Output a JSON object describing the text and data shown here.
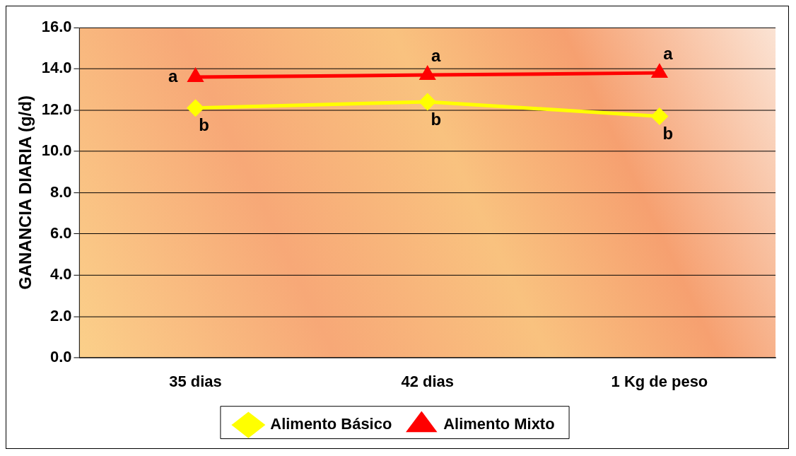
{
  "chart_data": {
    "type": "line",
    "ylabel": "GANANCIA DIARIA (g/d)",
    "categories": [
      "35 dias",
      "42 dias",
      "1 Kg de peso"
    ],
    "series": [
      {
        "name": "Alimento Básico",
        "color": "#ffff00",
        "marker": "diamond",
        "values": [
          12.1,
          12.4,
          11.7
        ]
      },
      {
        "name": "Alimento Mixto",
        "color": "#ff0000",
        "marker": "triangle",
        "values": [
          13.6,
          13.7,
          13.8
        ]
      }
    ],
    "ylim": [
      0,
      16
    ],
    "yticks": [
      {
        "value": 0,
        "label": "0.0"
      },
      {
        "value": 2,
        "label": "2.0"
      },
      {
        "value": 4,
        "label": "4.0"
      },
      {
        "value": 6,
        "label": "6.0"
      },
      {
        "value": 8,
        "label": "8.0"
      },
      {
        "value": 10,
        "label": "10.0"
      },
      {
        "value": 12,
        "label": "12.0"
      },
      {
        "value": 14,
        "label": "14.0"
      },
      {
        "value": 16,
        "label": "16.0"
      }
    ],
    "grid": "y",
    "legend": "bottom",
    "annotations": [
      {
        "text": "a",
        "x": "35 dias",
        "y": 13.6
      },
      {
        "text": "a",
        "x": "42 dias",
        "y": 13.7
      },
      {
        "text": "a",
        "x": "1 Kg de peso",
        "y": 13.8
      },
      {
        "text": "b",
        "x": "35 dias",
        "y": 12.1
      },
      {
        "text": "b",
        "x": "42 dias",
        "y": 12.4
      },
      {
        "text": "b",
        "x": "1 Kg de peso",
        "y": 11.7
      }
    ]
  }
}
